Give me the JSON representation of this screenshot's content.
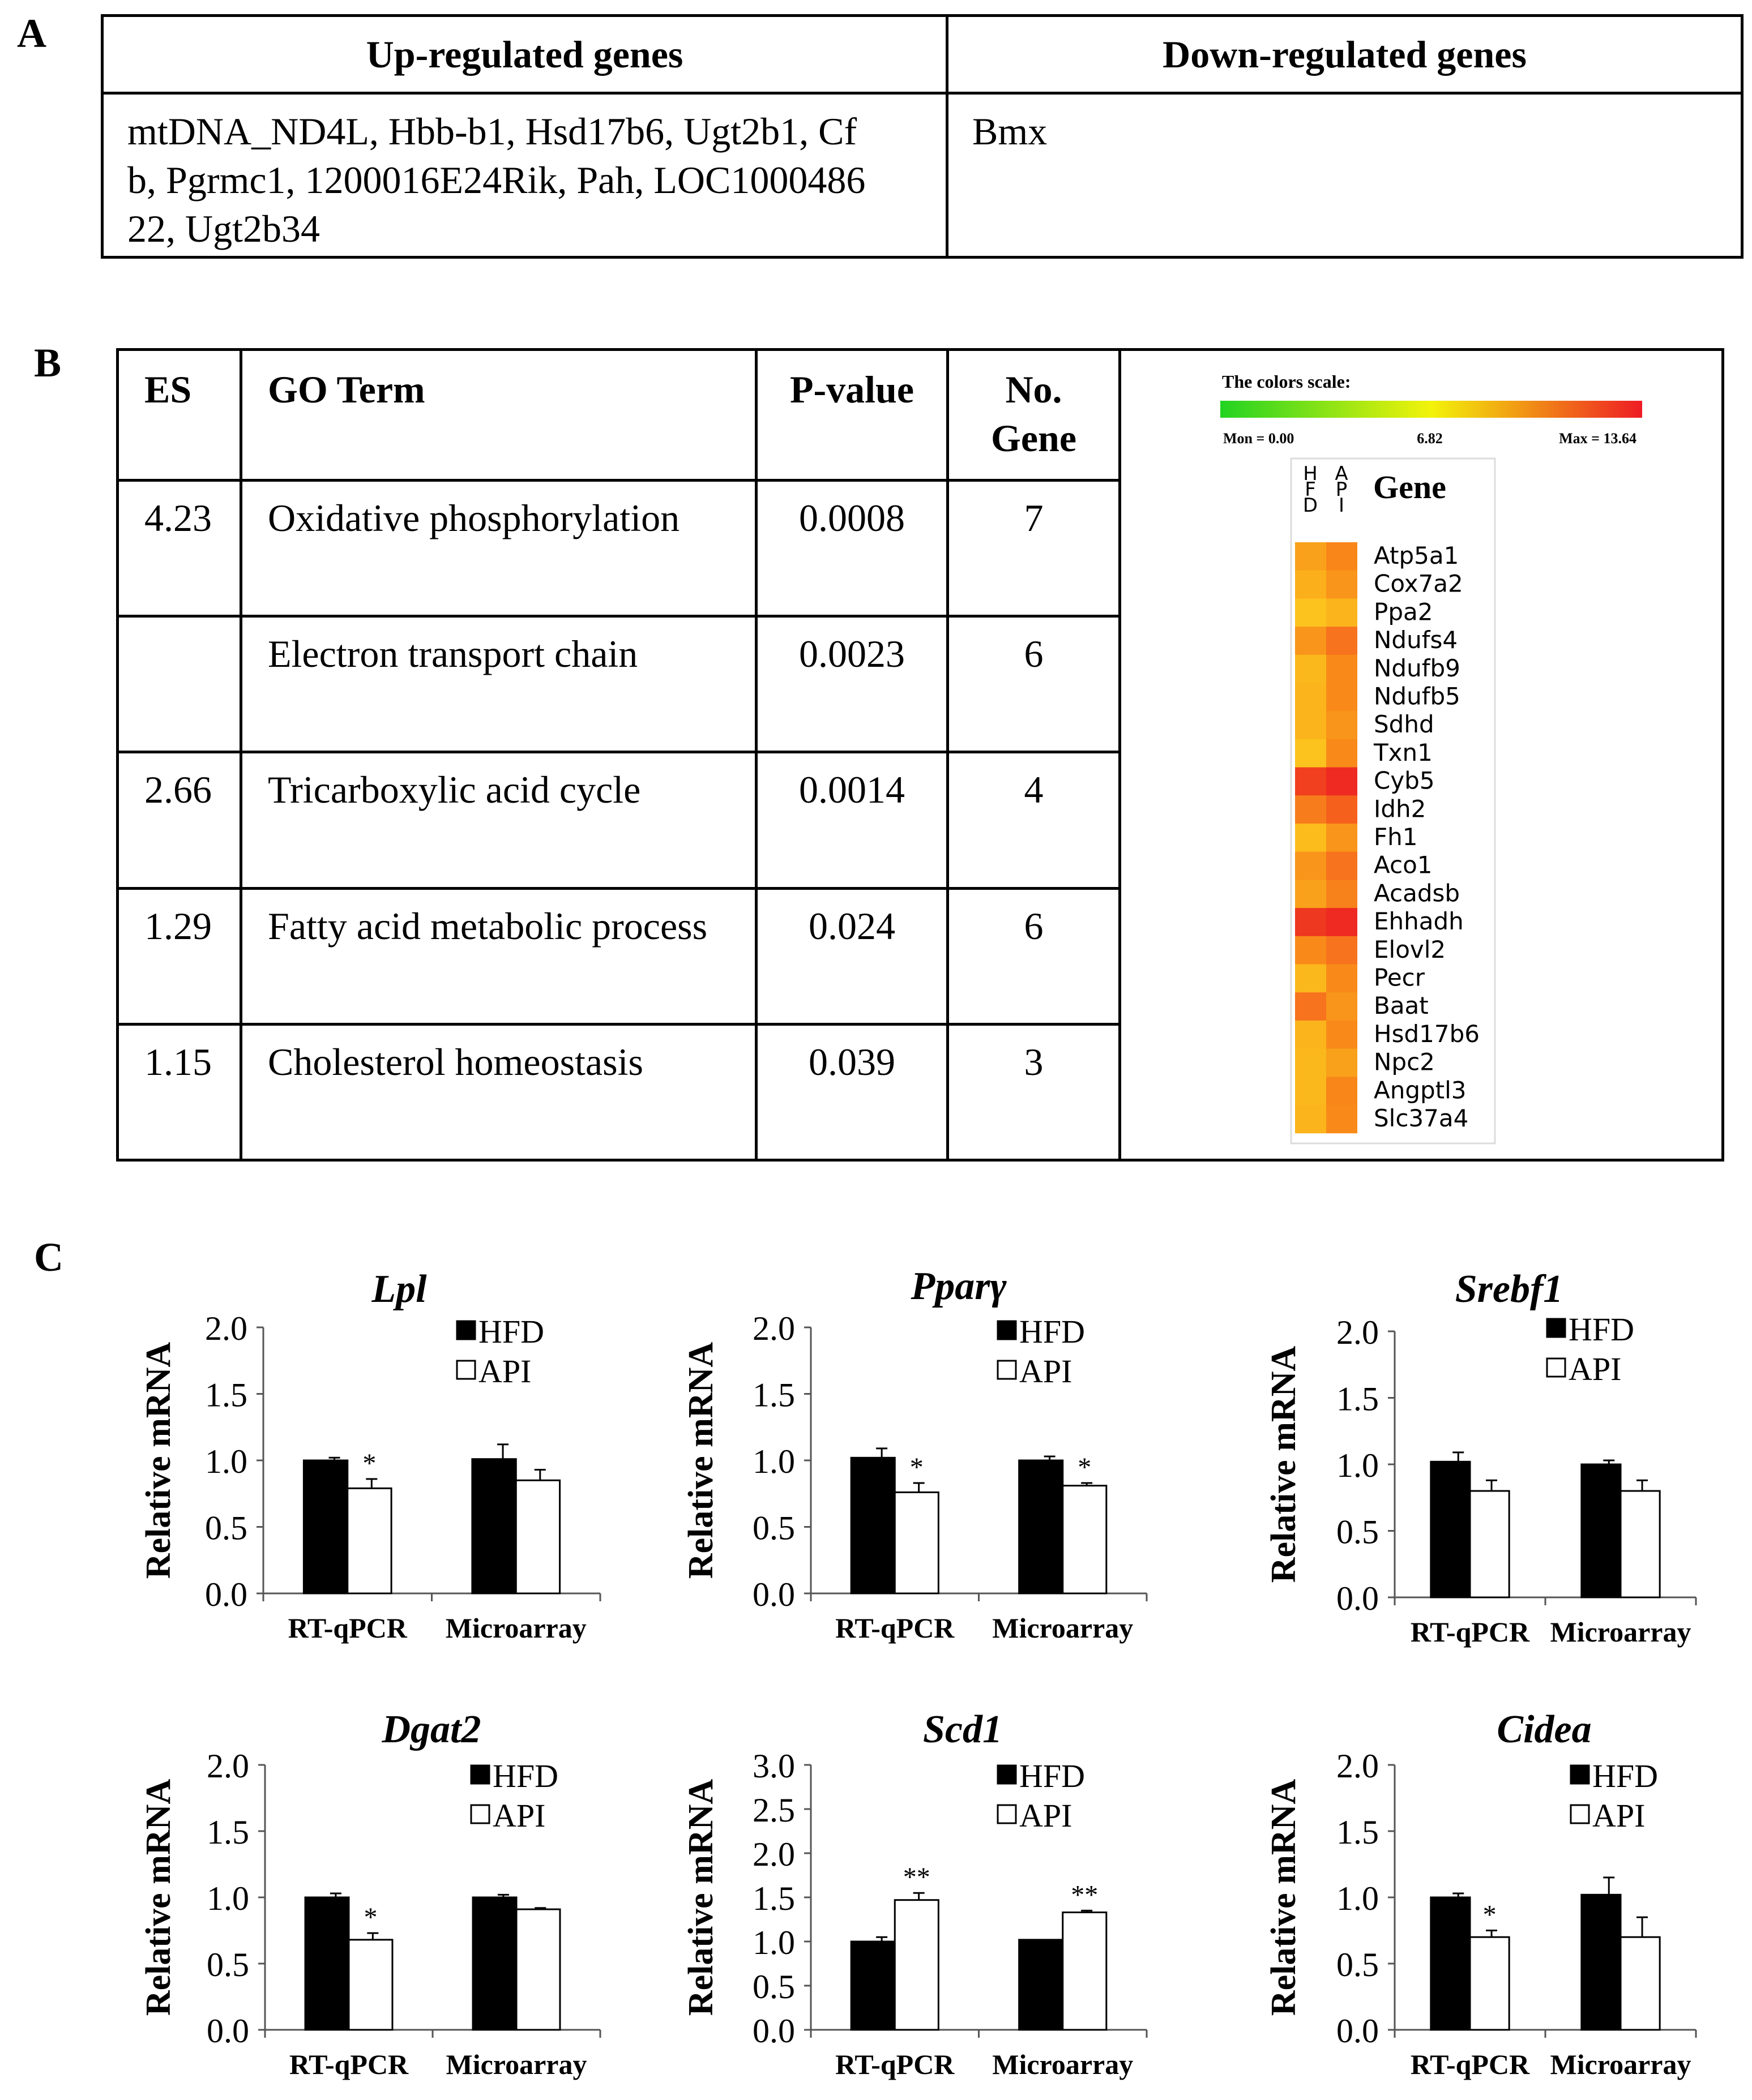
{
  "panel_labels": {
    "a": "A",
    "b": "B",
    "c": "C"
  },
  "panelA": {
    "headers": {
      "up": "Up-regulated genes",
      "down": "Down-regulated genes"
    },
    "up_lines": [
      "mtDNA_ND4L, Hbb-b1, Hsd17b6, Ugt2b1, Cf",
      "b, Pgrmc1, 1200016E24Rik,  Pah, LOC1000486",
      "22, Ugt2b34"
    ],
    "down": "Bmx"
  },
  "panelB": {
    "headers": {
      "es": "ES",
      "go": "GO Term",
      "p": "P-value",
      "n_line1": "No.",
      "n_line2": "Gene"
    },
    "rows": [
      {
        "es": "4.23",
        "term": "Oxidative phosphorylation",
        "p": "0.0008",
        "n": "7"
      },
      {
        "es": "",
        "term": "Electron transport chain",
        "p": "0.0023",
        "n": "6"
      },
      {
        "es": "2.66",
        "term": "Tricarboxylic  acid cycle",
        "p": "0.0014",
        "n": "4"
      },
      {
        "es": "1.29",
        "term": "Fatty acid metabolic process",
        "p": "0.024",
        "n": "6"
      },
      {
        "es": "1.15",
        "term": "Cholesterol homeostasis",
        "p": "0.039",
        "n": "3"
      }
    ],
    "heatmap": {
      "scale_title": "The colors scale:",
      "min_label": "Mon = 0.00",
      "mid_label": "6.82",
      "max_label": "Max = 13.64",
      "col_labels": [
        [
          "H",
          "F",
          "D"
        ],
        [
          "A",
          "P",
          "I"
        ]
      ],
      "gene_header": "Gene",
      "genes": [
        "Atp5a1",
        "Cox7a2",
        "Ppa2",
        "Ndufs4",
        "Ndufb9",
        "Ndufb5",
        "Sdhd",
        "Txn1",
        "Cyb5",
        "Idh2",
        "Fh1",
        "Aco1",
        "Acadsb",
        "Ehhadh",
        "Elovl2",
        "Pecr",
        "Baat",
        "Hsd17b6",
        "Npc2",
        "Angptl3",
        "Slc37a4"
      ],
      "colors": [
        [
          "#f9a11a",
          "#f98619"
        ],
        [
          "#fbaf1b",
          "#f9951a"
        ],
        [
          "#fcc21d",
          "#fbb41b"
        ],
        [
          "#f9951a",
          "#f7731d"
        ],
        [
          "#fbb81c",
          "#f98a19"
        ],
        [
          "#fbb41b",
          "#f98a19"
        ],
        [
          "#fbb41b",
          "#f9951a"
        ],
        [
          "#fcc21d",
          "#f98a19"
        ],
        [
          "#f0401f",
          "#ee2a22"
        ],
        [
          "#f77d1c",
          "#f5601d"
        ],
        [
          "#fbbc1c",
          "#f9951a"
        ],
        [
          "#f9951a",
          "#f7731d"
        ],
        [
          "#f9a11a",
          "#f7811b"
        ],
        [
          "#ef3820",
          "#ee2a22"
        ],
        [
          "#f98a19",
          "#f7731d"
        ],
        [
          "#fbb81c",
          "#f98a19"
        ],
        [
          "#f7731d",
          "#f9951a"
        ],
        [
          "#fbb41b",
          "#f98a19"
        ],
        [
          "#fbb81c",
          "#f9a11a"
        ],
        [
          "#fbb81c",
          "#f98619"
        ],
        [
          "#fbb41b",
          "#f98a19"
        ]
      ]
    }
  },
  "panelC": {
    "ylabel": "Relative mRNA",
    "legend": [
      "HFD",
      "API"
    ],
    "chart_data": [
      {
        "type": "bar",
        "title": "Lpl",
        "categories": [
          "RT-qPCR",
          "Microarray"
        ],
        "ylim": [
          0,
          2.0
        ],
        "yticks": [
          "0.0",
          "0.5",
          "1.0",
          "1.5",
          "2.0"
        ],
        "series": [
          {
            "name": "HFD",
            "values": [
              1.0,
              1.01
            ],
            "errors": [
              0.02,
              0.11
            ]
          },
          {
            "name": "API",
            "values": [
              0.79,
              0.85
            ],
            "errors": [
              0.07,
              0.08
            ]
          }
        ],
        "significance": [
          "*",
          ""
        ]
      },
      {
        "type": "bar",
        "title": "Pparγ",
        "categories": [
          "RT-qPCR",
          "Microarray"
        ],
        "ylim": [
          0,
          2.0
        ],
        "yticks": [
          "0.0",
          "0.5",
          "1.0",
          "1.5",
          "2.0"
        ],
        "series": [
          {
            "name": "HFD",
            "values": [
              1.02,
              1.0
            ],
            "errors": [
              0.07,
              0.03
            ]
          },
          {
            "name": "API",
            "values": [
              0.76,
              0.81
            ],
            "errors": [
              0.07,
              0.02
            ]
          }
        ],
        "significance": [
          "*",
          "*"
        ]
      },
      {
        "type": "bar",
        "title": "Srebf1",
        "categories": [
          "RT-qPCR",
          "Microarray"
        ],
        "ylim": [
          0,
          2.0
        ],
        "yticks": [
          "0.0",
          "0.5",
          "1.0",
          "1.5",
          "2.0"
        ],
        "series": [
          {
            "name": "HFD",
            "values": [
              1.02,
              1.0
            ],
            "errors": [
              0.07,
              0.03
            ]
          },
          {
            "name": "API",
            "values": [
              0.8,
              0.8
            ],
            "errors": [
              0.08,
              0.08
            ]
          }
        ],
        "significance": [
          "",
          ""
        ]
      },
      {
        "type": "bar",
        "title": "Dgat2",
        "categories": [
          "RT-qPCR",
          "Microarray"
        ],
        "ylim": [
          0,
          2.0
        ],
        "yticks": [
          "0.0",
          "0.5",
          "1.0",
          "1.5",
          "2.0"
        ],
        "series": [
          {
            "name": "HFD",
            "values": [
              1.0,
              1.0
            ],
            "errors": [
              0.03,
              0.02
            ]
          },
          {
            "name": "API",
            "values": [
              0.68,
              0.91
            ],
            "errors": [
              0.05,
              0.01
            ]
          }
        ],
        "significance": [
          "*",
          ""
        ]
      },
      {
        "type": "bar",
        "title": "Scd1",
        "categories": [
          "RT-qPCR",
          "Microarray"
        ],
        "ylim": [
          0,
          3.0
        ],
        "yticks": [
          "0.0",
          "0.5",
          "1.0",
          "1.5",
          "2.0",
          "2.5",
          "3.0"
        ],
        "series": [
          {
            "name": "HFD",
            "values": [
              1.0,
              1.02
            ],
            "errors": [
              0.05,
              0.0
            ]
          },
          {
            "name": "API",
            "values": [
              1.47,
              1.33
            ],
            "errors": [
              0.08,
              0.02
            ]
          }
        ],
        "significance": [
          "**",
          "**"
        ]
      },
      {
        "type": "bar",
        "title": "Cidea",
        "categories": [
          "RT-qPCR",
          "Microarray"
        ],
        "ylim": [
          0,
          2.0
        ],
        "yticks": [
          "0.0",
          "0.5",
          "1.0",
          "1.5",
          "2.0"
        ],
        "series": [
          {
            "name": "HFD",
            "values": [
              1.0,
              1.02
            ],
            "errors": [
              0.03,
              0.13
            ]
          },
          {
            "name": "API",
            "values": [
              0.7,
              0.7
            ],
            "errors": [
              0.05,
              0.15
            ]
          }
        ],
        "significance": [
          "*",
          ""
        ]
      }
    ]
  }
}
